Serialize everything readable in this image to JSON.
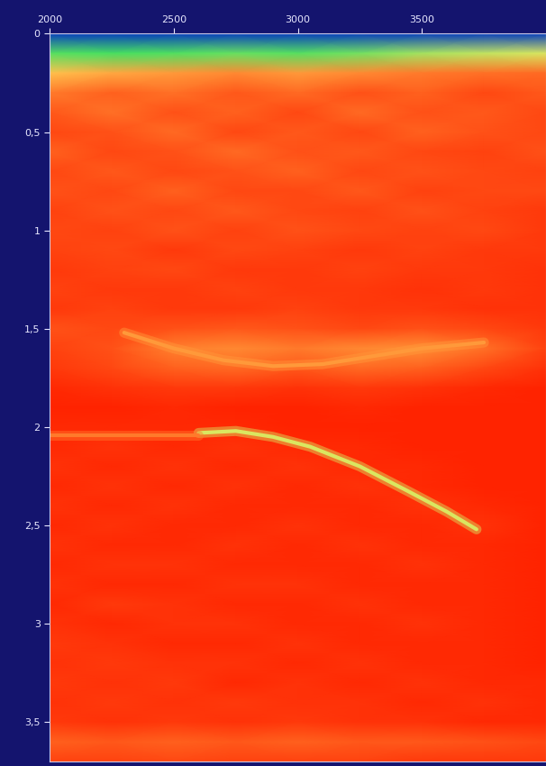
{
  "chart_data": {
    "type": "heatmap",
    "x": [
      2000,
      2250,
      2500,
      2750,
      3000,
      3250,
      3500,
      3750,
      4000
    ],
    "y": [
      0,
      0.1,
      0.2,
      0.3,
      0.4,
      0.5,
      0.6,
      0.7,
      0.8,
      0.9,
      1.0,
      1.1,
      1.2,
      1.3,
      1.4,
      1.5,
      1.6,
      1.7,
      1.8,
      1.9,
      2.0,
      2.1,
      2.2,
      2.3,
      2.4,
      2.5,
      2.6,
      2.7,
      2.8,
      2.9,
      3.0,
      3.1,
      3.2,
      3.3,
      3.4,
      3.5,
      3.6,
      3.7
    ],
    "cells": [
      [
        0.97,
        0.97,
        0.97,
        0.97,
        0.97,
        0.97,
        0.97,
        0.97,
        0.97
      ],
      [
        0.72,
        0.74,
        0.73,
        0.7,
        0.72,
        0.68,
        0.62,
        0.58,
        0.55
      ],
      [
        0.45,
        0.42,
        0.4,
        0.38,
        0.4,
        0.38,
        0.36,
        0.35,
        0.34
      ],
      [
        0.36,
        0.33,
        0.35,
        0.32,
        0.34,
        0.31,
        0.33,
        0.3,
        0.32
      ],
      [
        0.32,
        0.35,
        0.31,
        0.33,
        0.3,
        0.34,
        0.31,
        0.32,
        0.3
      ],
      [
        0.3,
        0.31,
        0.34,
        0.3,
        0.32,
        0.3,
        0.33,
        0.31,
        0.3
      ],
      [
        0.33,
        0.3,
        0.31,
        0.34,
        0.31,
        0.32,
        0.3,
        0.29,
        0.31
      ],
      [
        0.3,
        0.32,
        0.3,
        0.31,
        0.33,
        0.3,
        0.31,
        0.3,
        0.29
      ],
      [
        0.31,
        0.3,
        0.33,
        0.3,
        0.3,
        0.32,
        0.29,
        0.3,
        0.3
      ],
      [
        0.29,
        0.31,
        0.3,
        0.32,
        0.3,
        0.29,
        0.31,
        0.29,
        0.28
      ],
      [
        0.3,
        0.29,
        0.31,
        0.29,
        0.31,
        0.3,
        0.29,
        0.3,
        0.28
      ],
      [
        0.29,
        0.3,
        0.28,
        0.3,
        0.29,
        0.28,
        0.29,
        0.28,
        0.28
      ],
      [
        0.28,
        0.29,
        0.3,
        0.28,
        0.28,
        0.29,
        0.28,
        0.28,
        0.27
      ],
      [
        0.29,
        0.28,
        0.28,
        0.29,
        0.28,
        0.28,
        0.27,
        0.28,
        0.27
      ],
      [
        0.28,
        0.29,
        0.28,
        0.28,
        0.29,
        0.28,
        0.28,
        0.27,
        0.27
      ],
      [
        0.31,
        0.3,
        0.31,
        0.32,
        0.31,
        0.3,
        0.31,
        0.3,
        0.28
      ],
      [
        0.29,
        0.31,
        0.37,
        0.38,
        0.36,
        0.38,
        0.39,
        0.35,
        0.29
      ],
      [
        0.28,
        0.3,
        0.33,
        0.34,
        0.32,
        0.34,
        0.33,
        0.3,
        0.27
      ],
      [
        0.26,
        0.27,
        0.28,
        0.28,
        0.27,
        0.28,
        0.27,
        0.26,
        0.25
      ],
      [
        0.25,
        0.25,
        0.26,
        0.25,
        0.25,
        0.26,
        0.25,
        0.25,
        0.25
      ],
      [
        0.26,
        0.26,
        0.26,
        0.26,
        0.25,
        0.25,
        0.25,
        0.25,
        0.25
      ],
      [
        0.26,
        0.27,
        0.26,
        0.27,
        0.26,
        0.26,
        0.25,
        0.25,
        0.25
      ],
      [
        0.27,
        0.26,
        0.27,
        0.26,
        0.27,
        0.26,
        0.26,
        0.25,
        0.25
      ],
      [
        0.26,
        0.27,
        0.26,
        0.27,
        0.26,
        0.27,
        0.26,
        0.25,
        0.25
      ],
      [
        0.27,
        0.26,
        0.27,
        0.26,
        0.26,
        0.26,
        0.27,
        0.26,
        0.25
      ],
      [
        0.26,
        0.27,
        0.26,
        0.26,
        0.27,
        0.26,
        0.26,
        0.27,
        0.25
      ],
      [
        0.27,
        0.26,
        0.26,
        0.27,
        0.26,
        0.27,
        0.26,
        0.26,
        0.25
      ],
      [
        0.26,
        0.27,
        0.27,
        0.26,
        0.26,
        0.26,
        0.27,
        0.26,
        0.25
      ],
      [
        0.27,
        0.26,
        0.26,
        0.27,
        0.27,
        0.26,
        0.26,
        0.26,
        0.25
      ],
      [
        0.26,
        0.28,
        0.27,
        0.26,
        0.26,
        0.27,
        0.26,
        0.26,
        0.25
      ],
      [
        0.27,
        0.26,
        0.27,
        0.27,
        0.26,
        0.26,
        0.27,
        0.26,
        0.25
      ],
      [
        0.28,
        0.27,
        0.26,
        0.26,
        0.27,
        0.26,
        0.26,
        0.26,
        0.25
      ],
      [
        0.27,
        0.28,
        0.27,
        0.27,
        0.26,
        0.27,
        0.26,
        0.26,
        0.25
      ],
      [
        0.28,
        0.27,
        0.28,
        0.26,
        0.27,
        0.26,
        0.27,
        0.26,
        0.26
      ],
      [
        0.27,
        0.28,
        0.27,
        0.28,
        0.27,
        0.27,
        0.26,
        0.27,
        0.26
      ],
      [
        0.28,
        0.27,
        0.28,
        0.27,
        0.28,
        0.27,
        0.27,
        0.26,
        0.26
      ],
      [
        0.33,
        0.32,
        0.33,
        0.32,
        0.33,
        0.32,
        0.32,
        0.31,
        0.3
      ],
      [
        0.29,
        0.29,
        0.3,
        0.29,
        0.29,
        0.29,
        0.28,
        0.28,
        0.28
      ]
    ],
    "value_range": [
      0,
      1
    ],
    "events": [
      {
        "x": [
          2600,
          2750,
          2900,
          3050,
          3250,
          3450,
          3600,
          3720
        ],
        "y": [
          2.03,
          2.02,
          2.05,
          2.1,
          2.2,
          2.33,
          2.43,
          2.52
        ],
        "value": 0.55
      },
      {
        "x": [
          2000,
          2600
        ],
        "y": [
          2.04,
          2.04
        ],
        "value": 0.36
      },
      {
        "x": [
          2300,
          2500,
          2700,
          2900,
          3100,
          3300,
          3500,
          3750
        ],
        "y": [
          1.52,
          1.6,
          1.66,
          1.69,
          1.68,
          1.64,
          1.6,
          1.57
        ],
        "value": 0.4
      }
    ],
    "xlim": [
      2000,
      4000
    ],
    "ylim": [
      0,
      3.7
    ],
    "xticks": [
      2000,
      2500,
      3000,
      3500
    ],
    "yticks": [
      0,
      {
        "value": 0.5,
        "label": "0,5"
      },
      1,
      {
        "value": 1.5,
        "label": "1,5"
      },
      2,
      {
        "value": 2.5,
        "label": "2,5"
      },
      3,
      {
        "value": 3.5,
        "label": "3,5"
      }
    ]
  }
}
